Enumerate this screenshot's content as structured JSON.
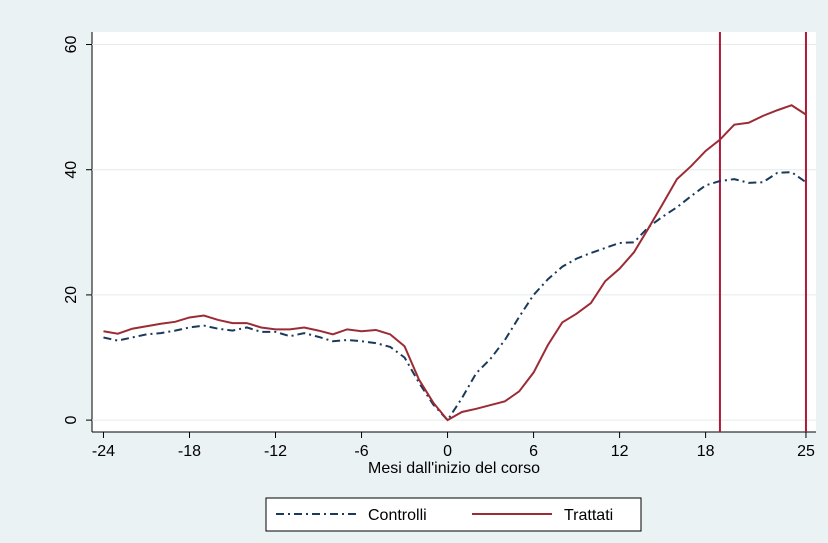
{
  "chart_data": {
    "type": "line",
    "x_label": "Mesi dall'inizio del corso",
    "x": [
      -24,
      -23,
      -22,
      -21,
      -20,
      -19,
      -18,
      -17,
      -16,
      -15,
      -14,
      -13,
      -12,
      -11,
      -10,
      -9,
      -8,
      -7,
      -6,
      -5,
      -4,
      -3,
      -2,
      -1,
      0,
      1,
      2,
      3,
      4,
      5,
      6,
      7,
      8,
      9,
      10,
      11,
      12,
      13,
      14,
      15,
      16,
      17,
      18,
      19,
      20,
      21,
      22,
      23,
      24,
      25
    ],
    "series": [
      {
        "name": "Controlli",
        "color": "#1a3a5c",
        "dash": "dash-dot",
        "values": [
          13.2,
          12.7,
          13.2,
          13.7,
          13.9,
          14.3,
          14.8,
          15.1,
          14.6,
          14.3,
          14.8,
          14.1,
          14.1,
          13.4,
          13.9,
          13.3,
          12.6,
          12.8,
          12.6,
          12.3,
          11.7,
          10,
          6,
          2.5,
          0,
          3.5,
          7.5,
          9.8,
          12.8,
          16.5,
          20,
          22.5,
          24.5,
          25.8,
          26.7,
          27.5,
          28.3,
          28.4,
          30.8,
          32.5,
          34,
          35.8,
          37.5,
          38.2,
          38.5,
          37.9,
          38,
          39.5,
          39.6,
          38
        ]
      },
      {
        "name": "Trattati",
        "color": "#9b2c35",
        "dash": "solid",
        "values": [
          14.2,
          13.8,
          14.6,
          15,
          15.4,
          15.7,
          16.4,
          16.7,
          16,
          15.5,
          15.5,
          14.8,
          14.5,
          14.5,
          14.8,
          14.3,
          13.7,
          14.5,
          14.2,
          14.4,
          13.7,
          11.8,
          6.5,
          2.8,
          0,
          1.3,
          1.8,
          2.4,
          3,
          4.6,
          7.6,
          12,
          15.6,
          17,
          18.7,
          22.2,
          24.2,
          26.8,
          30.6,
          34.5,
          38.5,
          40.6,
          43,
          44.8,
          47.2,
          47.5,
          48.6,
          49.5,
          50.3,
          48.8
        ]
      }
    ],
    "vlines": [
      19,
      25
    ],
    "vline_color": "#b0183a",
    "xlim": [
      -24.8,
      25.7
    ],
    "xticks": [
      -24,
      -18,
      -12,
      -6,
      0,
      6,
      12,
      18,
      25
    ],
    "ylim": [
      -1.9,
      62
    ],
    "yticks": [
      0,
      20,
      40,
      60
    ],
    "grid": true
  }
}
